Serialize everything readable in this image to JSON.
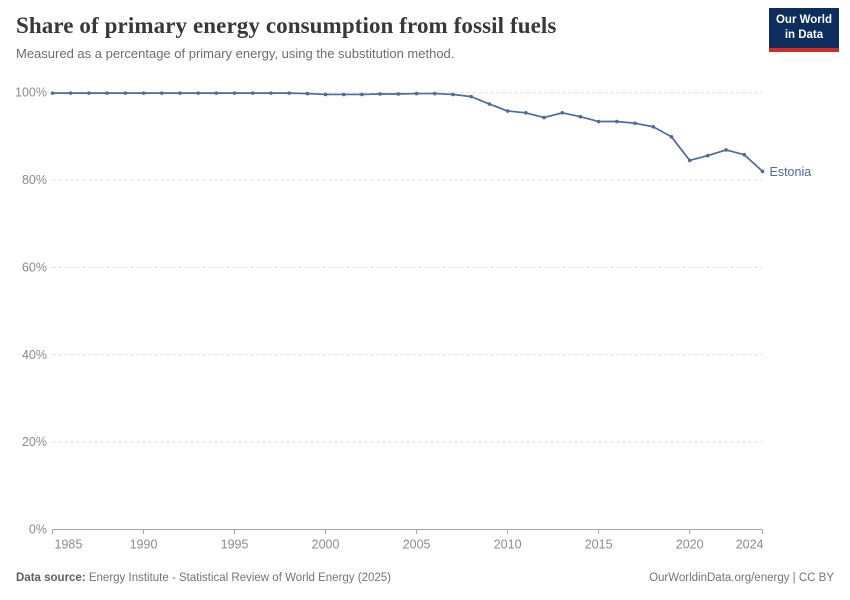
{
  "header": {
    "title": "Share of primary energy consumption from fossil fuels",
    "subtitle": "Measured as a percentage of primary energy, using the substitution method."
  },
  "logo": {
    "line1": "Our World",
    "line2": "in Data",
    "bg_color": "#0d2e5c",
    "accent_color": "#cc2d24"
  },
  "chart_data": {
    "type": "line",
    "title": "Share of primary energy consumption from fossil fuels",
    "subtitle": "Measured as a percentage of primary energy, using the substitution method.",
    "grid": "horizontal dashed",
    "legend_position": "end-of-line label",
    "ylim": [
      0,
      100
    ],
    "yticks": [
      0,
      20,
      40,
      60,
      80,
      100
    ],
    "ytick_suffix": "%",
    "xlim": [
      1985,
      2024
    ],
    "xticks": [
      1985,
      1990,
      1995,
      2000,
      2005,
      2010,
      2015,
      2020,
      2024
    ],
    "xlabel": "",
    "ylabel": "",
    "colors": {
      "line": "#4C6A9C",
      "grid": "#dcdcdc",
      "axis": "#a6a6a6",
      "tick_label": "#8c8c8c"
    },
    "series": [
      {
        "name": "Estonia",
        "color": "#4C6A9C",
        "x": [
          1985,
          1986,
          1987,
          1988,
          1989,
          1990,
          1991,
          1992,
          1993,
          1994,
          1995,
          1996,
          1997,
          1998,
          1999,
          2000,
          2001,
          2002,
          2003,
          2004,
          2005,
          2006,
          2007,
          2008,
          2009,
          2010,
          2011,
          2012,
          2013,
          2014,
          2015,
          2016,
          2017,
          2018,
          2019,
          2020,
          2021,
          2022,
          2023,
          2024
        ],
        "values": [
          99.9,
          99.9,
          99.9,
          99.9,
          99.9,
          99.9,
          99.9,
          99.9,
          99.9,
          99.9,
          99.9,
          99.9,
          99.9,
          99.9,
          99.8,
          99.6,
          99.6,
          99.6,
          99.7,
          99.7,
          99.8,
          99.8,
          99.6,
          99.1,
          97.4,
          95.8,
          95.4,
          94.3,
          95.4,
          94.5,
          93.4,
          93.4,
          93.0,
          92.2,
          89.9,
          84.5,
          85.6,
          86.9,
          85.8,
          82.0
        ]
      }
    ]
  },
  "footer": {
    "datasource_label": "Data source:",
    "datasource_text": " Energy Institute - Statistical Review of World Energy (2025)",
    "credit": "OurWorldinData.org/energy | CC BY"
  }
}
